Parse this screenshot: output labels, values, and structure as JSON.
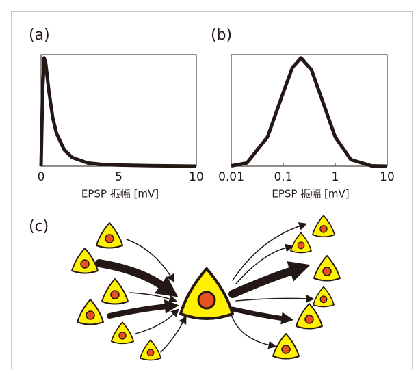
{
  "chart_data": [
    {
      "type": "line",
      "title": "(a)",
      "xlabel": "EPSP 振幅 [mV]",
      "x": [
        0,
        0.1,
        0.2,
        0.3,
        0.5,
        0.75,
        1,
        1.5,
        2,
        3,
        4,
        5,
        7,
        10
      ],
      "values": [
        0,
        0.7,
        1.0,
        0.95,
        0.7,
        0.45,
        0.3,
        0.15,
        0.08,
        0.03,
        0.015,
        0.01,
        0.005,
        0
      ],
      "color": "#231815",
      "xlim": [
        0,
        10
      ],
      "xticks": [
        0,
        5,
        10
      ],
      "ylim": [
        0,
        1.03
      ]
    },
    {
      "type": "line",
      "title": "(b)",
      "xlabel": "EPSP 振幅 [mV]",
      "xscale": "log",
      "x": [
        0.01,
        0.02,
        0.05,
        0.1,
        0.15,
        0.22,
        0.35,
        0.5,
        1,
        2,
        5,
        10
      ],
      "values": [
        0.003,
        0.03,
        0.27,
        0.68,
        0.91,
        1.0,
        0.89,
        0.68,
        0.27,
        0.06,
        0.003,
        0
      ],
      "color": "#231815",
      "xlim": [
        0.01,
        10
      ],
      "xticks": [
        0.01,
        0.1,
        1,
        10
      ],
      "ylim": [
        0,
        1.03
      ]
    }
  ],
  "diagram": {
    "label": "(c)"
  }
}
